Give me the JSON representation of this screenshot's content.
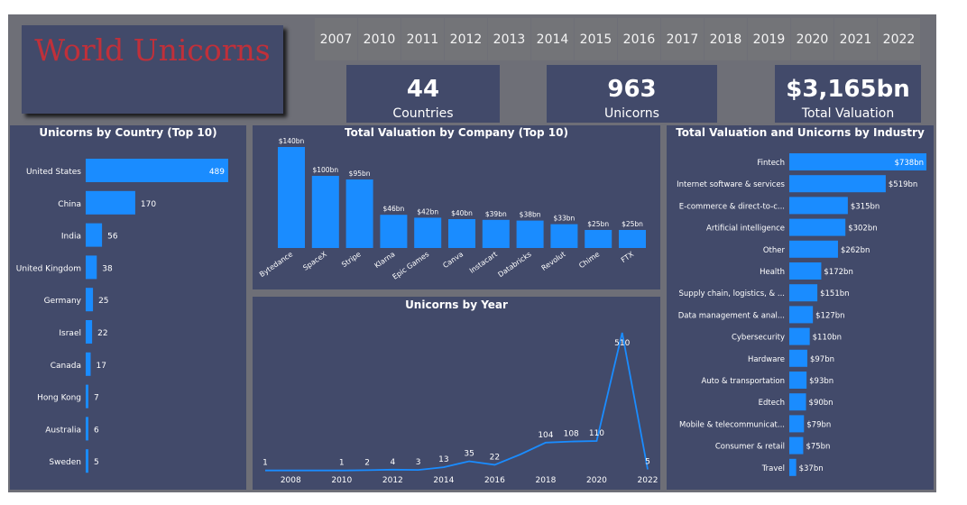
{
  "title": "World Unicorns",
  "years": [
    "2007",
    "2010",
    "2011",
    "2012",
    "2013",
    "2014",
    "2015",
    "2016",
    "2017",
    "2018",
    "2019",
    "2020",
    "2021",
    "2022"
  ],
  "kpis": [
    {
      "value": "44",
      "label": "Countries"
    },
    {
      "value": "963",
      "label": "Unicorns"
    },
    {
      "value": "$3,165bn",
      "label": "Total Valuation"
    }
  ],
  "colors": {
    "bar": "#1a8cff",
    "panel": "#424a6a",
    "frame": "#6e6f77",
    "title": "#c0303a"
  },
  "chart_data": [
    {
      "type": "bar",
      "orientation": "horizontal",
      "title": "Unicorns by Country (Top 10)",
      "categories": [
        "United States",
        "China",
        "India",
        "United Kingdom",
        "Germany",
        "Israel",
        "Canada",
        "Hong Kong",
        "Australia",
        "Sweden"
      ],
      "values": [
        489,
        170,
        56,
        38,
        25,
        22,
        17,
        7,
        6,
        5
      ],
      "labels": [
        "489",
        "170",
        "56",
        "38",
        "25",
        "22",
        "17",
        "7",
        "6",
        "5"
      ]
    },
    {
      "type": "bar",
      "title": "Total Valuation by Company (Top 10)",
      "categories": [
        "Bytedance",
        "SpaceX",
        "Stripe",
        "Klarna",
        "Epic Games",
        "Canva",
        "Instacart",
        "Databricks",
        "Revolut",
        "Chime",
        "FTX"
      ],
      "values": [
        140,
        100,
        95,
        46,
        42,
        40,
        39,
        38,
        33,
        25,
        25
      ],
      "labels": [
        "$140bn",
        "$100bn",
        "$95bn",
        "$46bn",
        "$42bn",
        "$40bn",
        "$39bn",
        "$38bn",
        "$33bn",
        "$25bn",
        "$25bn"
      ]
    },
    {
      "type": "line",
      "title": "Unicorns by Year",
      "x": [
        2007,
        2010,
        2011,
        2012,
        2013,
        2014,
        2015,
        2016,
        2017,
        2018,
        2019,
        2020,
        2021,
        2022
      ],
      "values": [
        1,
        1,
        2,
        4,
        3,
        13,
        35,
        22,
        null,
        104,
        108,
        110,
        510,
        5
      ],
      "labels": [
        "1",
        "1",
        "2",
        "4",
        "3",
        "13",
        "35",
        "22",
        "",
        "104",
        "108",
        "110",
        "510",
        "5"
      ],
      "xticks": [
        "2008",
        "2010",
        "2012",
        "2014",
        "2016",
        "2018",
        "2020",
        "2022"
      ],
      "xlim": [
        2007,
        2022
      ]
    },
    {
      "type": "bar",
      "orientation": "horizontal",
      "title": "Total Valuation and Unicorns by Industry",
      "categories": [
        "Fintech",
        "Internet software & services",
        "E-commerce & direct-to-c...",
        "Artificial intelligence",
        "Other",
        "Health",
        "Supply chain, logistics, & ...",
        "Data management & anal...",
        "Cybersecurity",
        "Hardware",
        "Auto & transportation",
        "Edtech",
        "Mobile & telecommunicat...",
        "Consumer & retail",
        "Travel"
      ],
      "values": [
        738,
        519,
        315,
        302,
        262,
        172,
        151,
        127,
        110,
        97,
        93,
        90,
        79,
        75,
        37
      ],
      "labels": [
        "$738bn",
        "$519bn",
        "$315bn",
        "$302bn",
        "$262bn",
        "$172bn",
        "$151bn",
        "$127bn",
        "$110bn",
        "$97bn",
        "$93bn",
        "$90bn",
        "$79bn",
        "$75bn",
        "$37bn"
      ]
    }
  ]
}
